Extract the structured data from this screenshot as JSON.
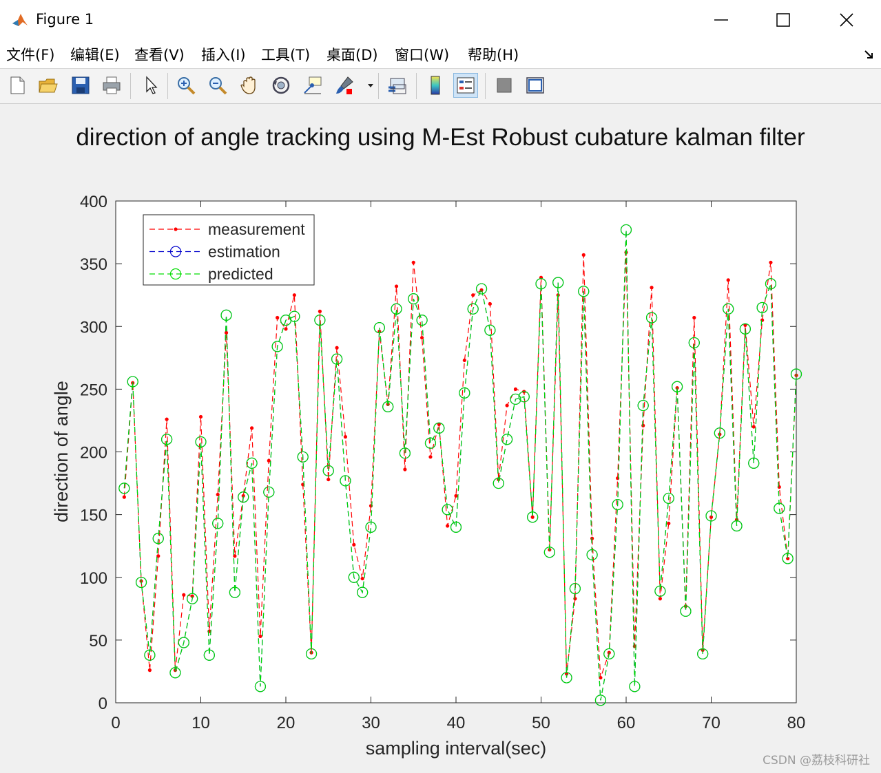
{
  "window": {
    "title": "Figure 1",
    "icon": "matlab-icon"
  },
  "menu": [
    "文件(F)",
    "编辑(E)",
    "查看(V)",
    "插入(I)",
    "工具(T)",
    "桌面(D)",
    "窗口(W)",
    "帮助(H)"
  ],
  "toolbar": [
    "new-figure-icon",
    "open-file-icon",
    "save-icon",
    "print-icon",
    "pointer-icon",
    "zoom-in-icon",
    "zoom-out-icon",
    "pan-icon",
    "rotate-3d-icon",
    "data-cursor-icon",
    "brush-icon",
    "link-plot-icon",
    "colorbar-icon",
    "legend-icon",
    "hide-plot-tools-icon",
    "show-plot-tools-icon"
  ],
  "watermark": "CSDN @荔枝科研社",
  "chart_data": {
    "type": "line",
    "title": "direction of angle tracking using M-Est Robust cubature kalman filter",
    "xlabel": "sampling interval(sec)",
    "ylabel": "direction of angle",
    "xlim": [
      0,
      80
    ],
    "ylim": [
      0,
      400
    ],
    "xticks": [
      0,
      10,
      20,
      30,
      40,
      50,
      60,
      70,
      80
    ],
    "yticks": [
      0,
      50,
      100,
      150,
      200,
      250,
      300,
      350,
      400
    ],
    "legend_position": "top-left",
    "x": [
      1,
      2,
      3,
      4,
      5,
      6,
      7,
      8,
      9,
      10,
      11,
      12,
      13,
      14,
      15,
      16,
      17,
      18,
      19,
      20,
      21,
      22,
      23,
      24,
      25,
      26,
      27,
      28,
      29,
      30,
      31,
      32,
      33,
      34,
      35,
      36,
      37,
      38,
      39,
      40,
      41,
      42,
      43,
      44,
      45,
      46,
      47,
      48,
      49,
      50,
      51,
      52,
      53,
      54,
      55,
      56,
      57,
      58,
      59,
      60,
      61,
      62,
      63,
      64,
      65,
      66,
      67,
      68,
      69,
      70,
      71,
      72,
      73,
      74,
      75,
      76,
      77,
      78,
      79,
      80
    ],
    "series": [
      {
        "name": "measurement",
        "color": "#ff0000",
        "style": "dashed-dot-marker",
        "values": [
          164,
          255,
          97,
          26,
          117,
          226,
          26,
          86,
          85,
          228,
          57,
          166,
          295,
          117,
          165,
          219,
          53,
          193,
          307,
          298,
          325,
          174,
          40,
          312,
          178,
          283,
          212,
          126,
          99,
          157,
          296,
          238,
          332,
          186,
          351,
          291,
          196,
          222,
          141,
          165,
          273,
          325,
          329,
          318,
          178,
          237,
          250,
          248,
          148,
          339,
          122,
          325,
          23,
          83,
          357,
          131,
          20,
          40,
          179,
          359,
          45,
          221,
          331,
          83,
          143,
          251,
          77,
          307,
          42,
          148,
          214,
          337,
          146,
          301,
          220,
          305,
          351,
          172,
          115,
          261
        ]
      },
      {
        "name": "estimation",
        "color": "#0000cc",
        "style": "dashed-circle",
        "values": [
          171,
          256,
          96,
          38,
          131,
          210,
          24,
          48,
          83,
          208,
          38,
          143,
          309,
          88,
          164,
          191,
          13,
          168,
          284,
          305,
          308,
          196,
          39,
          305,
          185,
          274,
          177,
          100,
          88,
          140,
          299,
          236,
          314,
          199,
          322,
          305,
          207,
          219,
          154,
          140,
          247,
          314,
          330,
          297,
          175,
          210,
          242,
          244,
          148,
          334,
          120,
          335,
          20,
          91,
          328,
          118,
          2,
          39,
          158,
          377,
          13,
          237,
          307,
          89,
          163,
          252,
          73,
          287,
          39,
          149,
          215,
          314,
          141,
          298,
          191,
          315,
          334,
          155,
          115,
          262
        ]
      },
      {
        "name": "predicted",
        "color": "#00dd00",
        "style": "dashed-circle",
        "values": [
          171,
          256,
          96,
          38,
          131,
          210,
          24,
          48,
          83,
          208,
          38,
          143,
          309,
          88,
          164,
          191,
          13,
          168,
          284,
          305,
          308,
          196,
          39,
          305,
          185,
          274,
          177,
          100,
          88,
          140,
          299,
          236,
          314,
          199,
          322,
          305,
          207,
          219,
          154,
          140,
          247,
          314,
          330,
          297,
          175,
          210,
          242,
          244,
          148,
          334,
          120,
          335,
          20,
          91,
          328,
          118,
          2,
          39,
          158,
          377,
          13,
          237,
          307,
          89,
          163,
          252,
          73,
          287,
          39,
          149,
          215,
          314,
          141,
          298,
          191,
          315,
          334,
          155,
          115,
          262
        ]
      }
    ]
  }
}
